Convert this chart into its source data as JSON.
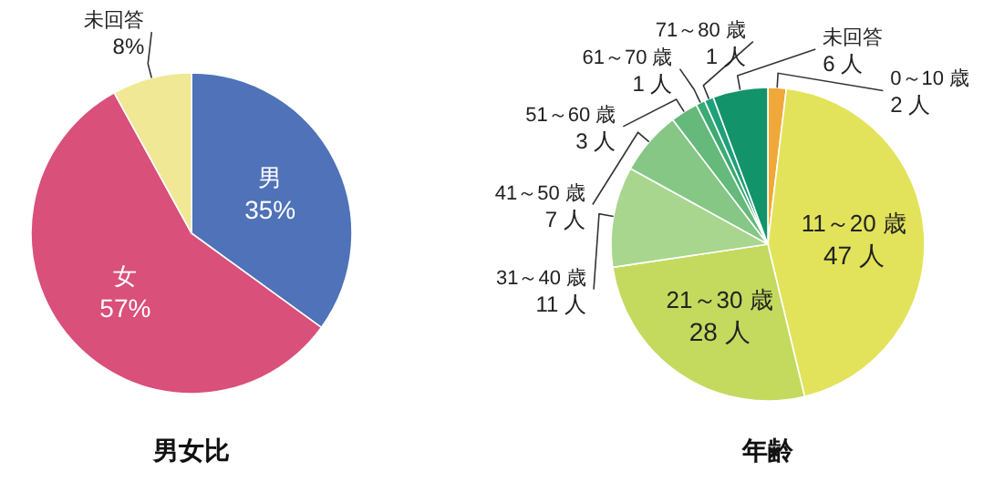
{
  "chart_data": [
    {
      "type": "pie",
      "title": "男女比",
      "categories": [
        "男",
        "女",
        "未回答"
      ],
      "values": [
        35,
        57,
        8
      ],
      "colors": [
        "#4f72b8",
        "#d9507a",
        "#f0e894"
      ],
      "value_labels": [
        "35%",
        "57%",
        "8%"
      ]
    },
    {
      "type": "pie",
      "title": "年齢",
      "categories": [
        "0～10 歳",
        "11～20 歳",
        "21～30 歳",
        "31～40 歳",
        "41～50 歳",
        "51～60 歳",
        "61～70 歳",
        "71～80 歳",
        "未回答"
      ],
      "values": [
        2,
        47,
        28,
        11,
        7,
        3,
        1,
        1,
        6
      ],
      "colors": [
        "#f0a83a",
        "#e2e35a",
        "#c4da5e",
        "#a8d68e",
        "#86c785",
        "#65b97a",
        "#3aab72",
        "#1ea07a",
        "#12936a"
      ],
      "value_labels": [
        "2 人",
        "47 人",
        "28 人",
        "11 人",
        "7 人",
        "3 人",
        "1 人",
        "1 人",
        "6 人"
      ]
    }
  ]
}
